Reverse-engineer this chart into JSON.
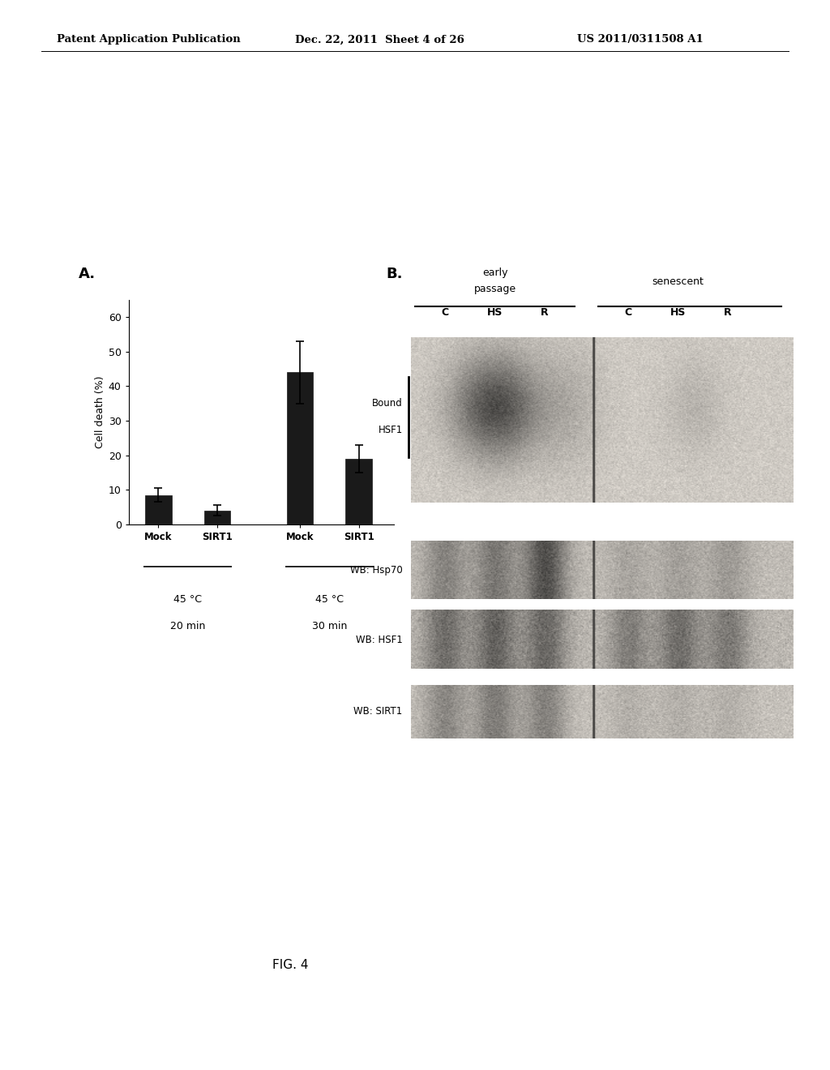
{
  "bg_color": "#ffffff",
  "header_left": "Patent Application Publication",
  "header_mid": "Dec. 22, 2011  Sheet 4 of 26",
  "header_right": "US 2011/0311508 A1",
  "fig_label": "FIG. 4",
  "panel_A_label": "A.",
  "panel_B_label": "B.",
  "bar_values": [
    8.5,
    4.0,
    44.0,
    19.0
  ],
  "bar_errors": [
    2.0,
    1.5,
    9.0,
    4.0
  ],
  "bar_color": "#1a1a1a",
  "bar_width": 0.45,
  "bar_positions": [
    0,
    1,
    2.4,
    3.4
  ],
  "yticks": [
    0,
    10,
    20,
    30,
    40,
    50,
    60
  ],
  "ylabel": "Cell death (%)",
  "xtick_labels": [
    "Mock",
    "SIRT1",
    "Mock",
    "SIRT1"
  ],
  "group1_label1": "45 °C",
  "group1_label2": "20 min",
  "group2_label1": "45 °C",
  "group2_label2": "30 min",
  "col_sublabels": [
    "C",
    "HS",
    "R",
    "C",
    "HS",
    "R"
  ]
}
